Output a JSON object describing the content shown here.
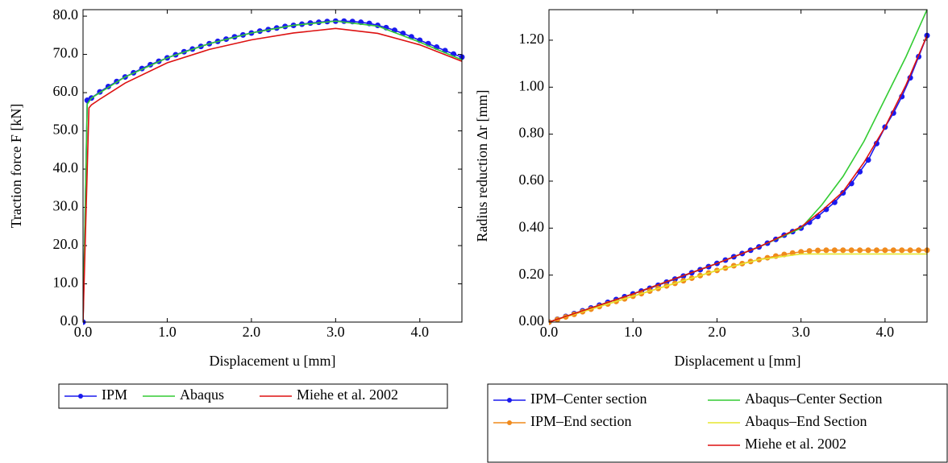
{
  "chart_data": [
    {
      "type": "line",
      "xlabel": "Displacement u [mm]",
      "ylabel": "Traction force F [kN]",
      "xlim": [
        0,
        4.5
      ],
      "ylim": [
        0,
        81.7
      ],
      "xticks": [
        {
          "value": 0,
          "label": "0.0"
        },
        {
          "value": 1,
          "label": "1.0"
        },
        {
          "value": 2,
          "label": "2.0"
        },
        {
          "value": 3,
          "label": "3.0"
        },
        {
          "value": 4,
          "label": "4.0"
        }
      ],
      "yticks": [
        {
          "value": 0,
          "label": "0.0"
        },
        {
          "value": 10,
          "label": "10.0"
        },
        {
          "value": 20,
          "label": "20.0"
        },
        {
          "value": 30,
          "label": "30.0"
        },
        {
          "value": 40,
          "label": "40.0"
        },
        {
          "value": 50,
          "label": "50.0"
        },
        {
          "value": 60,
          "label": "60.0"
        },
        {
          "value": 70,
          "label": "70.0"
        },
        {
          "value": 80,
          "label": "80.0"
        }
      ],
      "grid": false,
      "legend": "below",
      "series": [
        {
          "name": "IPM",
          "color": "#1a1aee",
          "marker": true,
          "x": [
            0,
            0.05,
            0.1,
            0.2,
            0.3,
            0.4,
            0.5,
            0.6,
            0.7,
            0.8,
            0.9,
            1.0,
            1.1,
            1.2,
            1.3,
            1.4,
            1.5,
            1.6,
            1.7,
            1.8,
            1.9,
            2.0,
            2.1,
            2.2,
            2.3,
            2.4,
            2.5,
            2.6,
            2.7,
            2.8,
            2.9,
            3.0,
            3.1,
            3.2,
            3.3,
            3.4,
            3.5,
            3.6,
            3.7,
            3.8,
            3.9,
            4.0,
            4.1,
            4.2,
            4.3,
            4.4,
            4.5
          ],
          "values": [
            0,
            58.0,
            58.6,
            60.2,
            61.6,
            62.9,
            64.1,
            65.2,
            66.3,
            67.3,
            68.2,
            69.1,
            69.9,
            70.7,
            71.4,
            72.1,
            72.8,
            73.4,
            74.0,
            74.6,
            75.1,
            75.6,
            76.1,
            76.5,
            76.9,
            77.3,
            77.6,
            77.9,
            78.2,
            78.4,
            78.6,
            78.7,
            78.7,
            78.6,
            78.4,
            78.1,
            77.6,
            77.0,
            76.3,
            75.5,
            74.6,
            73.7,
            72.8,
            71.9,
            71.0,
            70.1,
            69.3
          ]
        },
        {
          "name": "Abaqus",
          "color": "#33cc33",
          "marker": false,
          "x": [
            0,
            0.05,
            0.1,
            0.5,
            1.0,
            1.5,
            2.0,
            2.5,
            3.0,
            3.5,
            4.0,
            4.5
          ],
          "values": [
            0,
            57,
            58.6,
            64.1,
            69.1,
            72.8,
            75.6,
            77.6,
            78.7,
            77.4,
            73.2,
            68.6
          ]
        },
        {
          "name": "Miehe et al. 2002",
          "color": "#dd1111",
          "marker": false,
          "x": [
            0,
            0.07,
            0.1,
            0.2,
            0.5,
            1.0,
            1.5,
            2.0,
            2.5,
            3.0,
            3.5,
            4.0,
            4.5
          ],
          "values": [
            0,
            56,
            56.8,
            58.3,
            62.5,
            67.8,
            71.3,
            73.8,
            75.6,
            76.8,
            75.5,
            72.5,
            68.2
          ]
        }
      ]
    },
    {
      "type": "line",
      "xlabel": "Displacement u [mm]",
      "ylabel": "Radius reduction Δr [mm]",
      "xlim": [
        0,
        4.5
      ],
      "ylim": [
        0,
        1.33
      ],
      "xticks": [
        {
          "value": 0,
          "label": "0.0"
        },
        {
          "value": 1,
          "label": "1.0"
        },
        {
          "value": 2,
          "label": "2.0"
        },
        {
          "value": 3,
          "label": "3.0"
        },
        {
          "value": 4,
          "label": "4.0"
        }
      ],
      "yticks": [
        {
          "value": 0,
          "label": "0.00"
        },
        {
          "value": 0.2,
          "label": "0.20"
        },
        {
          "value": 0.4,
          "label": "0.40"
        },
        {
          "value": 0.6,
          "label": "0.60"
        },
        {
          "value": 0.8,
          "label": "0.80"
        },
        {
          "value": 1.0,
          "label": "1.00"
        },
        {
          "value": 1.2,
          "label": "1.20"
        }
      ],
      "grid": false,
      "legend": "below",
      "series": [
        {
          "name": "IPM–Center section",
          "color": "#1a1aee",
          "marker": true,
          "x": [
            0,
            0.1,
            0.2,
            0.3,
            0.4,
            0.5,
            0.6,
            0.7,
            0.8,
            0.9,
            1.0,
            1.1,
            1.2,
            1.3,
            1.4,
            1.5,
            1.6,
            1.7,
            1.8,
            1.9,
            2.0,
            2.1,
            2.2,
            2.3,
            2.4,
            2.5,
            2.6,
            2.7,
            2.8,
            2.9,
            3.0,
            3.1,
            3.2,
            3.3,
            3.4,
            3.5,
            3.6,
            3.7,
            3.8,
            3.9,
            4.0,
            4.1,
            4.2,
            4.3,
            4.4,
            4.5
          ],
          "values": [
            0,
            0.012,
            0.024,
            0.036,
            0.048,
            0.06,
            0.072,
            0.084,
            0.096,
            0.108,
            0.12,
            0.132,
            0.144,
            0.157,
            0.17,
            0.183,
            0.196,
            0.21,
            0.223,
            0.236,
            0.25,
            0.264,
            0.278,
            0.292,
            0.306,
            0.32,
            0.336,
            0.352,
            0.37,
            0.385,
            0.4,
            0.425,
            0.45,
            0.48,
            0.51,
            0.55,
            0.59,
            0.64,
            0.69,
            0.76,
            0.83,
            0.89,
            0.96,
            1.04,
            1.13,
            1.22
          ]
        },
        {
          "name": "IPM–End section",
          "color": "#f08a1c",
          "marker": true,
          "x": [
            0,
            0.1,
            0.2,
            0.3,
            0.4,
            0.5,
            0.6,
            0.7,
            0.8,
            0.9,
            1.0,
            1.1,
            1.2,
            1.3,
            1.4,
            1.5,
            1.6,
            1.7,
            1.8,
            1.9,
            2.0,
            2.1,
            2.2,
            2.3,
            2.4,
            2.5,
            2.6,
            2.7,
            2.8,
            2.9,
            3.0,
            3.1,
            3.2,
            3.3,
            3.4,
            3.5,
            3.6,
            3.7,
            3.8,
            3.9,
            4.0,
            4.1,
            4.2,
            4.3,
            4.4,
            4.5
          ],
          "values": [
            0,
            0.011,
            0.022,
            0.033,
            0.044,
            0.055,
            0.066,
            0.077,
            0.088,
            0.099,
            0.11,
            0.121,
            0.132,
            0.143,
            0.154,
            0.165,
            0.176,
            0.187,
            0.198,
            0.209,
            0.22,
            0.23,
            0.24,
            0.249,
            0.258,
            0.266,
            0.274,
            0.281,
            0.288,
            0.294,
            0.299,
            0.303,
            0.305,
            0.306,
            0.306,
            0.306,
            0.306,
            0.306,
            0.306,
            0.306,
            0.306,
            0.306,
            0.306,
            0.306,
            0.306,
            0.306
          ]
        },
        {
          "name": "Abaqus–Center Section",
          "color": "#33cc33",
          "marker": false,
          "x": [
            0,
            1.0,
            2.0,
            2.5,
            3.0,
            3.25,
            3.5,
            3.75,
            4.0,
            4.25,
            4.5
          ],
          "values": [
            0,
            0.12,
            0.25,
            0.32,
            0.4,
            0.5,
            0.62,
            0.77,
            0.95,
            1.13,
            1.33
          ]
        },
        {
          "name": "Abaqus–End Section",
          "color": "#e6e62e",
          "marker": false,
          "x": [
            0,
            1.0,
            2.0,
            2.5,
            3.0,
            3.2,
            4.5
          ],
          "values": [
            0,
            0.11,
            0.22,
            0.266,
            0.29,
            0.29,
            0.29
          ]
        },
        {
          "name": "Miehe et al. 2002",
          "color": "#dd1111",
          "marker": false,
          "x": [
            0,
            1.0,
            2.0,
            2.5,
            3.0,
            3.25,
            3.5,
            3.75,
            4.0,
            4.25,
            4.5
          ],
          "values": [
            0,
            0.12,
            0.25,
            0.32,
            0.405,
            0.475,
            0.555,
            0.68,
            0.83,
            1.01,
            1.22
          ]
        }
      ]
    }
  ]
}
